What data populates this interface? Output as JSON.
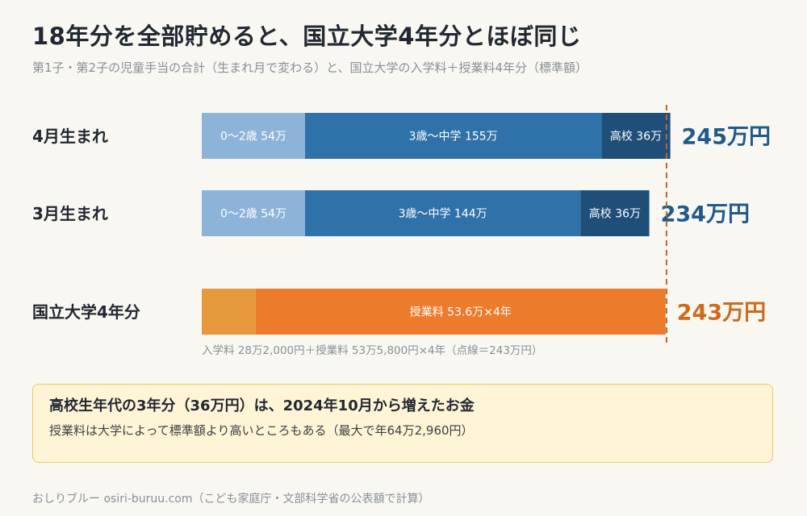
{
  "header": {
    "title": "18年分を全部貯めると、国立大学4年分とほぼ同じ",
    "subtitle": "第1子・第2子の児童手当の合計（生まれ月で変わる）と、国立大学の入学料＋授業料4年分（標準額）"
  },
  "colors": {
    "age0_2": "#8db3d8",
    "age3_junior": "#2f71a9",
    "highschool": "#1f4e79",
    "admission": "#e6983d",
    "tuition": "#ed7b2c",
    "total_blue": "#215a8a",
    "total_orange": "#cf6a1d",
    "reference_line": "#c0652a"
  },
  "chart_data": {
    "type": "bar",
    "orientation": "horizontal",
    "stacked": true,
    "unit": "万円",
    "reference_line": 243,
    "categories": [
      "4月生まれ",
      "3月生まれ",
      "国立大学4年分"
    ],
    "rows": [
      {
        "label": "4月生まれ",
        "total": 245,
        "total_label": "245万円",
        "segments": [
          {
            "label": "0〜2歳 54万",
            "value": 54,
            "color_key": "age0_2"
          },
          {
            "label": "3歳〜中学 155万",
            "value": 155,
            "color_key": "age3_junior"
          },
          {
            "label": "高校 36万",
            "value": 36,
            "color_key": "highschool"
          }
        ]
      },
      {
        "label": "3月生まれ",
        "total": 234,
        "total_label": "234万円",
        "segments": [
          {
            "label": "0〜2歳 54万",
            "value": 54,
            "color_key": "age0_2"
          },
          {
            "label": "3歳〜中学 144万",
            "value": 144,
            "color_key": "age3_junior"
          },
          {
            "label": "高校 36万",
            "value": 36,
            "color_key": "highschool"
          }
        ]
      },
      {
        "label": "国立大学4年分",
        "total": 243,
        "total_label": "243万円",
        "segments": [
          {
            "label": "",
            "value": 28.2,
            "color_key": "admission"
          },
          {
            "label": "授業料 53.6万×4年",
            "value": 214.32,
            "color_key": "tuition"
          }
        ]
      }
    ],
    "note": "入学料 28万2,000円＋授業料 53万5,800円×4年（点線＝243万円）"
  },
  "callout": {
    "title": "高校生年代の3年分（36万円）は、2024年10月から増えたお金",
    "body": "授業料は大学によって標準額より高いところもある（最大で年64万2,960円）"
  },
  "footer": {
    "credit": "おしりブルー osiri-buruu.com（こども家庭庁・文部科学省の公表額で計算）"
  }
}
